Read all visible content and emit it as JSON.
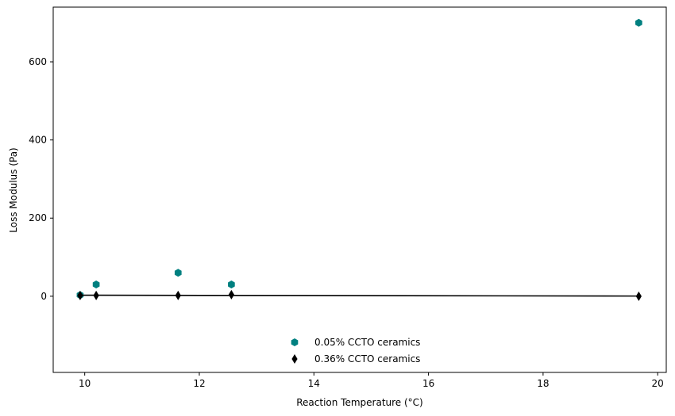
{
  "chart_data": {
    "type": "scatter",
    "xlabel": "Reaction Temperature (°C)",
    "ylabel": "Loss Modulus (Pa)",
    "xlim": [
      9.45,
      20.15
    ],
    "ylim": [
      -195,
      740
    ],
    "xticks": [
      10,
      12,
      14,
      16,
      18,
      20
    ],
    "yticks": [
      0,
      200,
      400,
      600
    ],
    "grid": false,
    "legend_position": "bottom-center",
    "series": [
      {
        "name": "0.05% CCTO ceramics",
        "marker": "hexagon",
        "color": "#008080",
        "x": [
          9.92,
          10.2,
          11.63,
          12.56,
          19.67
        ],
        "y": [
          3,
          30,
          60,
          30,
          700
        ]
      },
      {
        "name": "0.36% CCTO ceramics",
        "marker": "thin-diamond",
        "color": "#000000",
        "x": [
          9.92,
          10.2,
          11.63,
          12.56,
          19.67
        ],
        "y": [
          2,
          2,
          2,
          4,
          0
        ],
        "trend_line": true
      }
    ]
  }
}
